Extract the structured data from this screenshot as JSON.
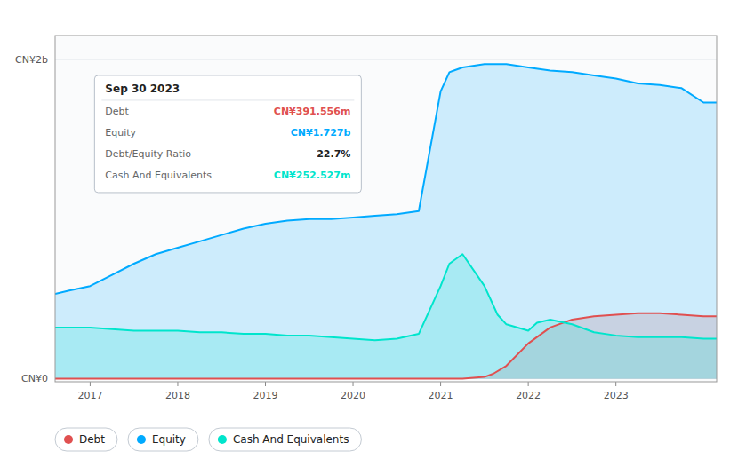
{
  "chart_data": {
    "type": "area",
    "xlim": [
      2016.6,
      2024.15
    ],
    "xticks": [
      2017,
      2018,
      2019,
      2020,
      2021,
      2022,
      2023
    ],
    "ylim": [
      -0.02,
      2.15
    ],
    "yticks": [
      {
        "value": 0,
        "label": "CN¥0"
      },
      {
        "value": 2,
        "label": "CN¥2b"
      }
    ],
    "grid": true,
    "legend": "bottom",
    "series": [
      {
        "name": "Debt",
        "color": "#e05050",
        "x": [
          2016.6,
          2016.75,
          2017.0,
          2017.25,
          2017.5,
          2017.75,
          2018.0,
          2018.25,
          2018.5,
          2018.75,
          2019.0,
          2019.25,
          2019.5,
          2019.75,
          2020.0,
          2020.25,
          2020.5,
          2020.75,
          2021.0,
          2021.25,
          2021.5,
          2021.6,
          2021.75,
          2022.0,
          2022.25,
          2022.5,
          2022.75,
          2023.0,
          2023.25,
          2023.5,
          2023.75,
          2024.0,
          2024.15
        ],
        "values": [
          0.0,
          0.0,
          0.0,
          0.0,
          0.0,
          0.0,
          0.0,
          0.0,
          0.0,
          0.0,
          0.0,
          0.0,
          0.0,
          0.0,
          0.0,
          0.0,
          0.0,
          0.0,
          0.0,
          0.0,
          0.01,
          0.03,
          0.08,
          0.22,
          0.32,
          0.37,
          0.39,
          0.4,
          0.41,
          0.41,
          0.4,
          0.39,
          0.39
        ]
      },
      {
        "name": "Equity",
        "color": "#00aaff",
        "x": [
          2016.6,
          2016.75,
          2017.0,
          2017.25,
          2017.5,
          2017.75,
          2018.0,
          2018.25,
          2018.5,
          2018.75,
          2019.0,
          2019.25,
          2019.5,
          2019.75,
          2020.0,
          2020.25,
          2020.5,
          2020.75,
          2021.0,
          2021.1,
          2021.25,
          2021.5,
          2021.75,
          2022.0,
          2022.25,
          2022.5,
          2022.75,
          2023.0,
          2023.25,
          2023.5,
          2023.75,
          2024.0,
          2024.15
        ],
        "values": [
          0.53,
          0.55,
          0.58,
          0.65,
          0.72,
          0.78,
          0.82,
          0.86,
          0.9,
          0.94,
          0.97,
          0.99,
          1.0,
          1.0,
          1.01,
          1.02,
          1.03,
          1.05,
          1.8,
          1.92,
          1.95,
          1.97,
          1.97,
          1.95,
          1.93,
          1.92,
          1.9,
          1.88,
          1.85,
          1.84,
          1.82,
          1.73,
          1.73
        ]
      },
      {
        "name": "Cash And Equivalents",
        "color": "#00e5cc",
        "x": [
          2016.6,
          2016.75,
          2017.0,
          2017.25,
          2017.5,
          2017.75,
          2018.0,
          2018.25,
          2018.5,
          2018.75,
          2019.0,
          2019.25,
          2019.5,
          2019.75,
          2020.0,
          2020.25,
          2020.5,
          2020.75,
          2021.0,
          2021.1,
          2021.25,
          2021.5,
          2021.65,
          2021.75,
          2022.0,
          2022.1,
          2022.25,
          2022.5,
          2022.75,
          2023.0,
          2023.25,
          2023.5,
          2023.75,
          2024.0,
          2024.15
        ],
        "values": [
          0.32,
          0.32,
          0.32,
          0.31,
          0.3,
          0.3,
          0.3,
          0.29,
          0.29,
          0.28,
          0.28,
          0.27,
          0.27,
          0.26,
          0.25,
          0.24,
          0.25,
          0.28,
          0.58,
          0.72,
          0.78,
          0.58,
          0.4,
          0.34,
          0.3,
          0.35,
          0.37,
          0.34,
          0.29,
          0.27,
          0.26,
          0.26,
          0.26,
          0.25,
          0.25
        ]
      }
    ],
    "annotation": {
      "title": "Sep 30 2023",
      "rows": [
        {
          "label": "Debt",
          "text": "CN¥391.556m"
        },
        {
          "label": "Equity",
          "text": "CN¥1.727b"
        },
        {
          "label": "Debt/Equity Ratio",
          "text": "22.7%"
        },
        {
          "label": "Cash And Equivalents",
          "text": "CN¥252.527m"
        }
      ]
    }
  }
}
